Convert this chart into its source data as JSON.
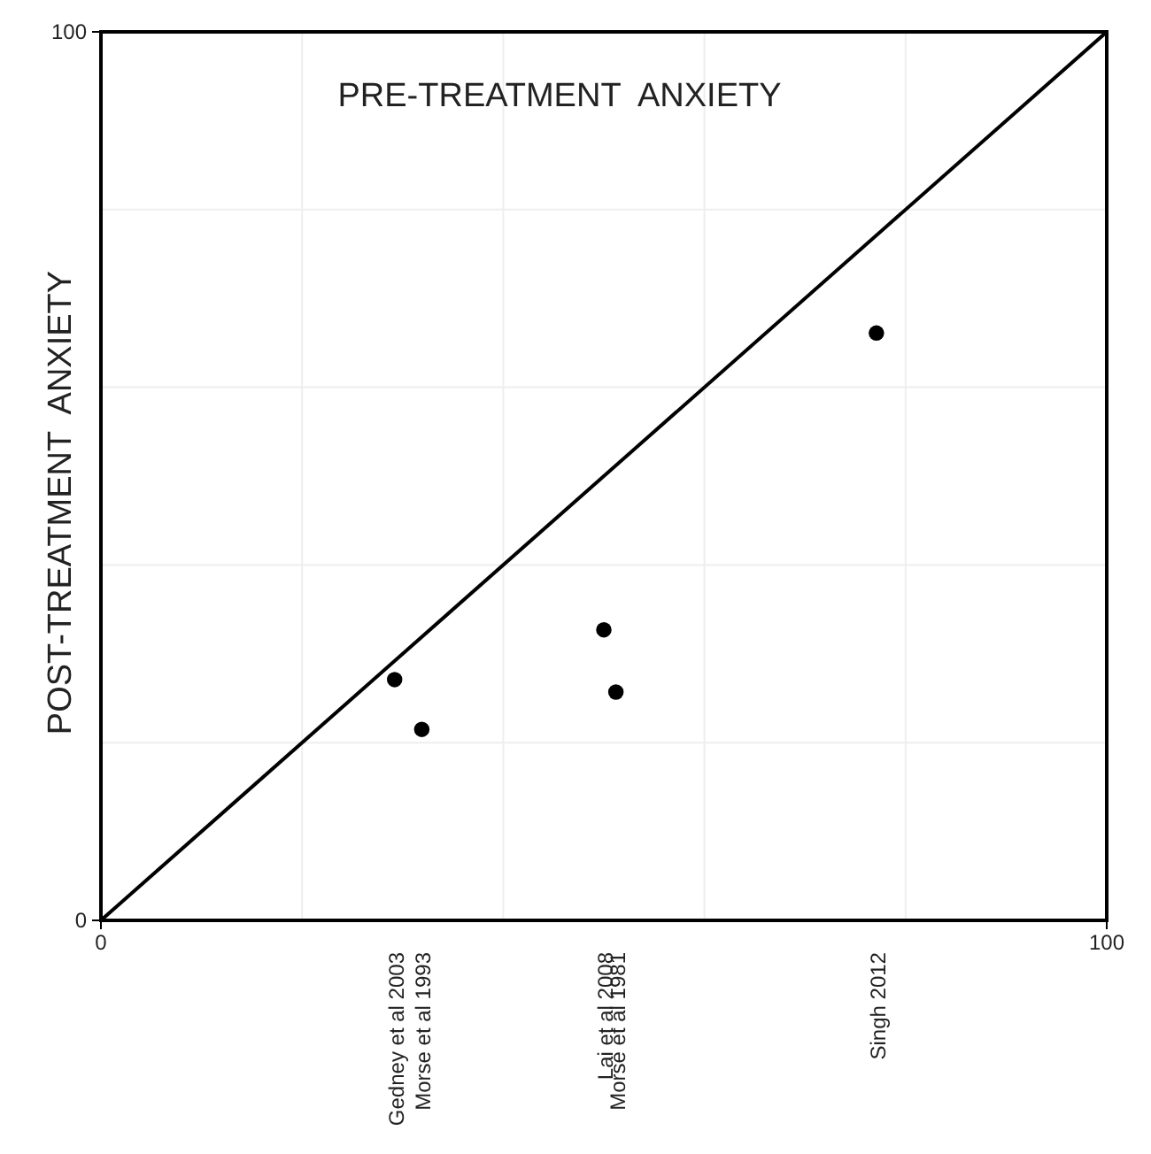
{
  "chart_data": {
    "type": "scatter",
    "xlabel": "PRE-TREATMENT  ANXIETY",
    "ylabel": "POST-TREATMENT  ANXIETY",
    "xlim": [
      0,
      100
    ],
    "ylim": [
      0,
      100
    ],
    "xticks": [
      0,
      {
        "value": 20,
        "label": null
      },
      {
        "value": 40,
        "label": null
      },
      {
        "value": 60,
        "label": null
      },
      {
        "value": 80,
        "label": null
      },
      100
    ],
    "yticks": [
      0,
      {
        "value": 20,
        "label": null
      },
      {
        "value": 40,
        "label": null
      },
      {
        "value": 60,
        "label": null
      },
      {
        "value": 80,
        "label": null
      },
      100
    ],
    "grid": true,
    "series": [
      {
        "color": "#000000",
        "marker": "circle",
        "x": [
          29.2,
          31.9,
          50.0,
          51.2,
          77.1
        ],
        "values": [
          27.1,
          21.5,
          32.7,
          25.7,
          66.1
        ]
      },
      {
        "type": "line",
        "color": "#000000",
        "marker": "none",
        "x": [
          0,
          100
        ],
        "values": [
          0,
          100
        ]
      }
    ],
    "annotations": [
      "Gedney et al 2003",
      "Morse et al 1993",
      "Lai et al 2008",
      "Morse et al 1981",
      "Singh 2012"
    ]
  }
}
